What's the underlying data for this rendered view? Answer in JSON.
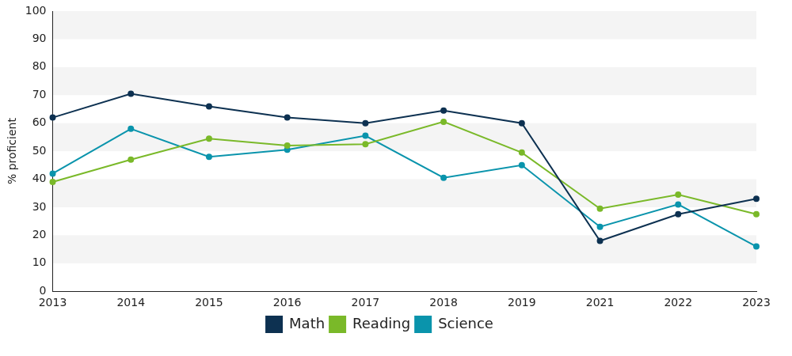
{
  "chart_data": {
    "type": "line",
    "y_label": "% proficient",
    "categories": [
      "2013",
      "2014",
      "2015",
      "2016",
      "2017",
      "2018",
      "2019",
      "2021",
      "2022",
      "2023"
    ],
    "series": [
      {
        "name": "Math",
        "color": "#0d3151",
        "values": [
          62,
          70.5,
          66,
          62,
          60,
          64.5,
          60,
          18,
          27.5,
          33
        ]
      },
      {
        "name": "Reading",
        "color": "#7ab929",
        "values": [
          39,
          47,
          54.5,
          52,
          52.5,
          60.5,
          49.5,
          29.5,
          34.5,
          27.5
        ]
      },
      {
        "name": "Science",
        "color": "#0a94ac",
        "values": [
          42,
          58,
          48,
          50.5,
          55.5,
          40.5,
          45,
          23,
          31,
          16
        ]
      }
    ],
    "ylim": [
      0,
      100
    ],
    "yticks": [
      0,
      10,
      20,
      30,
      40,
      50,
      60,
      70,
      80,
      90,
      100
    ],
    "grid": true,
    "legend": "bottom",
    "marker": "circle"
  }
}
